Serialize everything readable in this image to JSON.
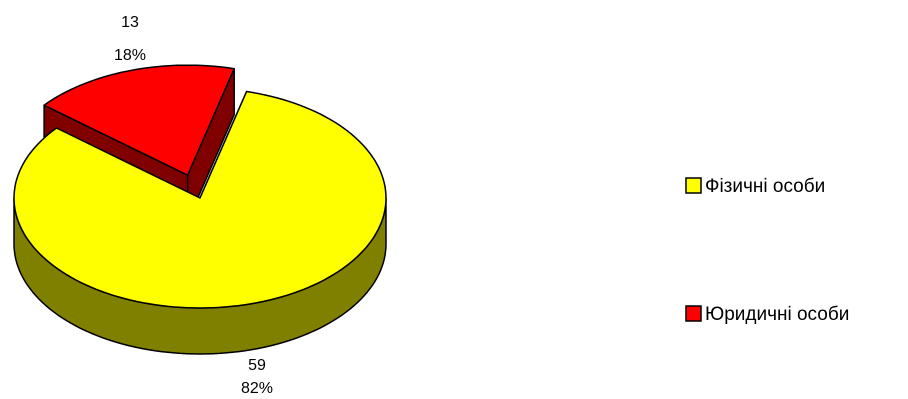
{
  "chart_data": {
    "type": "pie",
    "title": "",
    "three_d": true,
    "exploded_slice": "Юридичні особи",
    "legend_position": "right",
    "slices": [
      {
        "label": "Фізичні особи",
        "value": 59,
        "percent": "82%",
        "value_text": "59",
        "color": "#ffff00",
        "side_color": "#808000"
      },
      {
        "label": "Юридичні особи",
        "value": 13,
        "percent": "18%",
        "value_text": "13",
        "color": "#ff0000",
        "side_color": "#800000"
      }
    ]
  }
}
